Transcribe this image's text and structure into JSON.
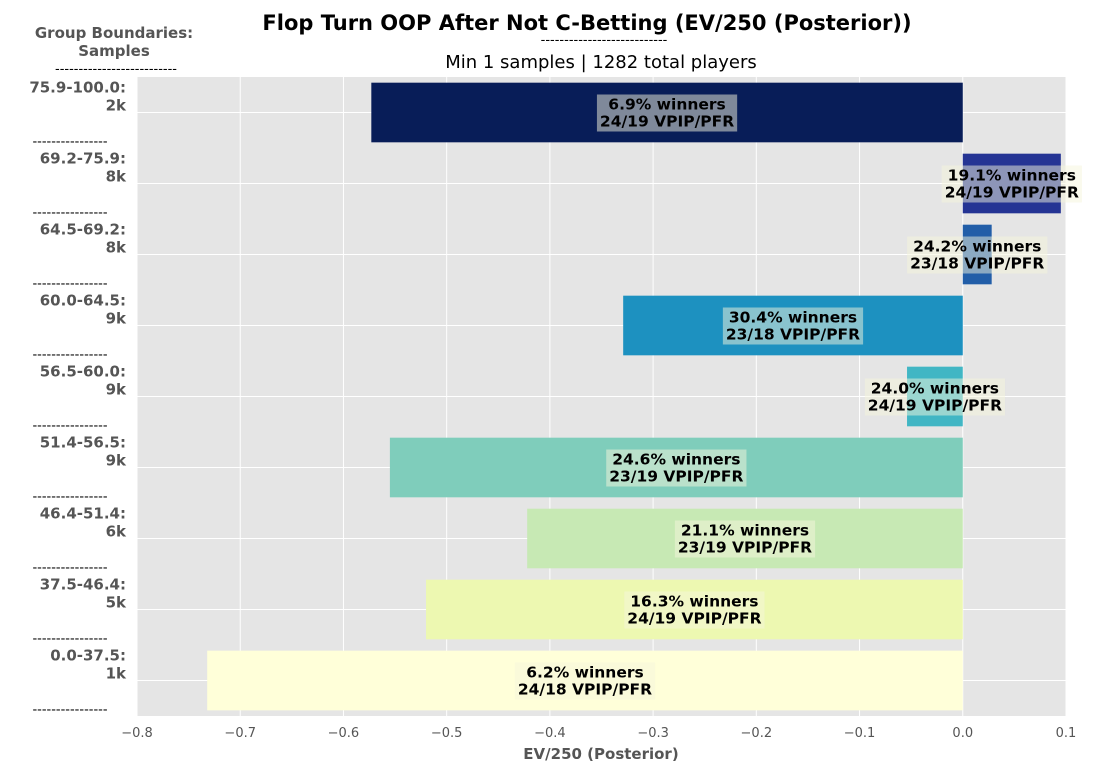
{
  "header": {
    "title": "Flop Turn OOP After Not C-Betting (EV/250 (Posterior))",
    "title_rule": "---------------------------",
    "subtitle": "Min 1 samples | 1282 total players",
    "group_header_line1": "Group Boundaries:",
    "group_header_line2": "Samples",
    "group_header_rule": "--------------------------"
  },
  "chart_data": {
    "type": "bar",
    "orientation": "horizontal",
    "xlabel": "EV/250 (Posterior)",
    "xlim": [
      -0.8,
      0.1
    ],
    "xticks": [
      -0.8,
      -0.7,
      -0.6,
      -0.5,
      -0.4,
      -0.3,
      -0.2,
      -0.1,
      0.0,
      0.1
    ],
    "xtick_labels": [
      "−0.8",
      "−0.7",
      "−0.6",
      "−0.5",
      "−0.4",
      "−0.3",
      "−0.2",
      "−0.1",
      "0.0",
      "0.1"
    ],
    "grid": true,
    "background": "#e5e5e5",
    "group_separator": "----------------",
    "categories": [
      {
        "range": "75.9-100.0:",
        "samples": "2k",
        "value": -0.573,
        "winners": "6.9% winners",
        "vpip_pfr": "24/19 VPIP/PFR",
        "color": "#081d58"
      },
      {
        "range": "69.2-75.9:",
        "samples": "8k",
        "value": 0.095,
        "winners": "19.1% winners",
        "vpip_pfr": "24/19 VPIP/PFR",
        "color": "#253494"
      },
      {
        "range": "64.5-69.2:",
        "samples": "8k",
        "value": 0.028,
        "winners": "24.2% winners",
        "vpip_pfr": "23/18 VPIP/PFR",
        "color": "#225ea8"
      },
      {
        "range": "60.0-64.5:",
        "samples": "9k",
        "value": -0.329,
        "winners": "30.4% winners",
        "vpip_pfr": "23/18 VPIP/PFR",
        "color": "#1d91c0"
      },
      {
        "range": "56.5-60.0:",
        "samples": "9k",
        "value": -0.054,
        "winners": "24.0% winners",
        "vpip_pfr": "24/19 VPIP/PFR",
        "color": "#41b6c4"
      },
      {
        "range": "51.4-56.5:",
        "samples": "9k",
        "value": -0.555,
        "winners": "24.6% winners",
        "vpip_pfr": "23/19 VPIP/PFR",
        "color": "#7fcdbb"
      },
      {
        "range": "46.4-51.4:",
        "samples": "6k",
        "value": -0.422,
        "winners": "21.1% winners",
        "vpip_pfr": "23/19 VPIP/PFR",
        "color": "#c7e9b4"
      },
      {
        "range": "37.5-46.4:",
        "samples": "5k",
        "value": -0.52,
        "winners": "16.3% winners",
        "vpip_pfr": "24/19 VPIP/PFR",
        "color": "#edf8b1"
      },
      {
        "range": "0.0-37.5:",
        "samples": "1k",
        "value": -0.732,
        "winners": "6.2% winners",
        "vpip_pfr": "24/18 VPIP/PFR",
        "color": "#ffffd9"
      }
    ]
  }
}
